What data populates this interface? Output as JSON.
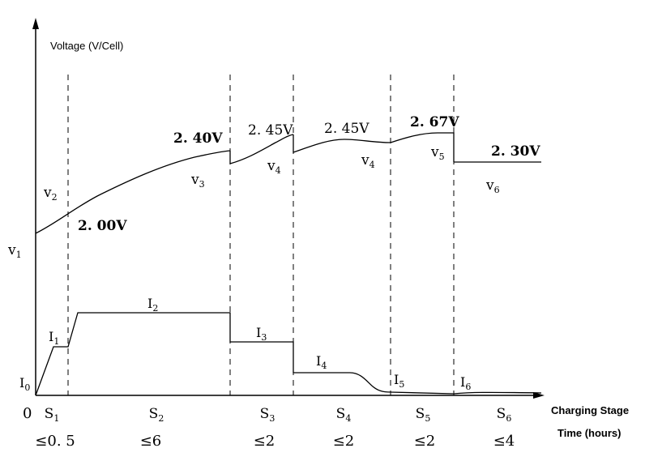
{
  "chart_data": {
    "type": "line",
    "axes": {
      "ylabel": "Voltage (V/Cell)",
      "xlabel_stage": "Charging Stage",
      "xlabel_time": "Time (hours)",
      "origin": "0"
    },
    "stages": [
      {
        "name": "S1",
        "duration": "≤0. 5"
      },
      {
        "name": "S2",
        "duration": "≤6"
      },
      {
        "name": "S3",
        "duration": "≤2"
      },
      {
        "name": "S4",
        "duration": "≤2"
      },
      {
        "name": "S5",
        "duration": "≤2"
      },
      {
        "name": "S6",
        "duration": "≤4"
      }
    ],
    "voltage_labels": {
      "v1": "v1",
      "v2": "v2",
      "v3": "v3",
      "v4a": "v4",
      "v4b": "v4",
      "v5": "v5",
      "v6": "v6"
    },
    "voltage_values": {
      "start": "2. 00V",
      "s2_end": "2. 40V",
      "s3_end": "2. 45V",
      "s4_end": "2. 45V",
      "s5_end": "2. 67V",
      "s6": "2. 30V"
    },
    "current_labels": [
      "I0",
      "I1",
      "I2",
      "I3",
      "I4",
      "I5",
      "I6"
    ]
  }
}
